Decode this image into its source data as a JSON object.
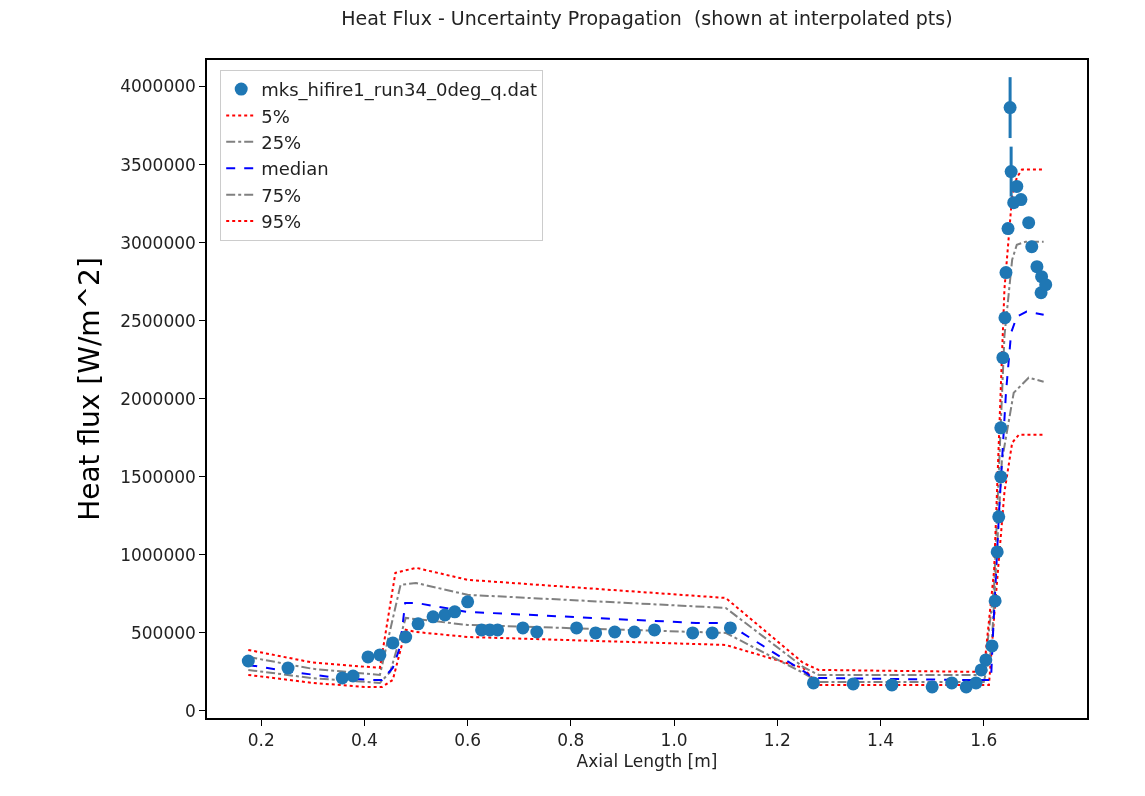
{
  "chart_data": {
    "type": "line",
    "title": "Heat Flux - Uncertainty Propagation  (shown at interpolated pts)",
    "xlabel": "Axial Length [m]",
    "ylabel": "Heat flux [W/m^2]",
    "xlim": [
      0.095,
      1.8
    ],
    "xticks": [
      0.2,
      0.4,
      0.6,
      0.8,
      {
        "value": 1.0,
        "label": "1.0"
      },
      1.2,
      1.4,
      1.6
    ],
    "ylim": [
      -45000,
      4170000
    ],
    "yticks": [
      0,
      500000,
      1000000,
      1500000,
      2000000,
      2500000,
      3000000,
      3500000,
      4000000
    ],
    "grid": false,
    "legend": "top left",
    "series": [
      {
        "name": "mks_hifire1_run34_0deg_q.dat",
        "type": "scatter",
        "marker": "circle",
        "color": "#1f77b4",
        "x": [
          0.175,
          0.252,
          0.357,
          0.378,
          0.407,
          0.43,
          0.455,
          0.48,
          0.504,
          0.533,
          0.556,
          0.575,
          0.6,
          0.627,
          0.643,
          0.658,
          0.707,
          0.734,
          0.811,
          0.848,
          0.885,
          0.923,
          0.962,
          1.036,
          1.074,
          1.109,
          1.27,
          1.347,
          1.422,
          1.5,
          1.538,
          1.566,
          1.585,
          1.595,
          1.604,
          1.616,
          1.622,
          1.626,
          1.629,
          1.633,
          1.633,
          1.637,
          1.641,
          1.643,
          1.647,
          1.651,
          1.653,
          1.658,
          1.664,
          1.672,
          1.687,
          1.693,
          1.703,
          1.711,
          1.712,
          1.72
        ],
        "values": [
          320000,
          275000,
          212000,
          224000,
          346000,
          359000,
          436000,
          474000,
          558000,
          603000,
          615000,
          635000,
          699000,
          519000,
          519000,
          519000,
          532000,
          506000,
          532000,
          500000,
          506000,
          506000,
          519000,
          500000,
          500000,
          532000,
          180000,
          173000,
          167000,
          154000,
          180000,
          154000,
          180000,
          263000,
          327000,
          417000,
          705000,
          1019000,
          1244000,
          1500000,
          1814000,
          2263000,
          2519000,
          2808000,
          3090000,
          3865000,
          3455000,
          3256000,
          3360000,
          3276000,
          3128000,
          2974000,
          2846000,
          2679000,
          2782000,
          2731000
        ],
        "errors": [
          null,
          null,
          null,
          null,
          null,
          null,
          null,
          null,
          null,
          null,
          null,
          null,
          null,
          null,
          null,
          null,
          null,
          null,
          null,
          null,
          null,
          null,
          null,
          null,
          null,
          null,
          null,
          null,
          null,
          null,
          null,
          null,
          null,
          null,
          null,
          null,
          null,
          null,
          null,
          null,
          null,
          null,
          null,
          null,
          null,
          195000,
          160000,
          null,
          null,
          null,
          null,
          null,
          null,
          null,
          null,
          null
        ]
      },
      {
        "name": "5%",
        "color": "#ff0000",
        "line_style": "dotted",
        "x": [
          0.175,
          0.3,
          0.4,
          0.434,
          0.455,
          0.48,
          0.5,
          0.6,
          1.1,
          1.25,
          1.28,
          1.55,
          1.61,
          1.62,
          1.64,
          1.655,
          1.668,
          1.716
        ],
        "values": [
          231000,
          180000,
          154000,
          154000,
          199000,
          520000,
          506000,
          474000,
          423000,
          276000,
          167000,
          167000,
          167000,
          600000,
          1400000,
          1718000,
          1769000,
          1769000
        ]
      },
      {
        "name": "25%",
        "color": "#808080",
        "line_style": "dashdot",
        "x": [
          0.175,
          0.3,
          0.43,
          0.45,
          0.48,
          0.6,
          1.1,
          1.25,
          1.28,
          1.6,
          1.615,
          1.635,
          1.658,
          1.687,
          1.716
        ],
        "values": [
          263000,
          210000,
          180000,
          250000,
          596000,
          551000,
          500000,
          244000,
          186000,
          186000,
          400000,
          1600000,
          2038000,
          2135000,
          2109000
        ]
      },
      {
        "name": "median",
        "color": "#0000ff",
        "line_style": "dashed",
        "x": [
          0.175,
          0.25,
          0.35,
          0.417,
          0.434,
          0.455,
          0.469,
          0.479,
          0.501,
          0.598,
          1.043,
          1.107,
          1.132,
          1.256,
          1.268,
          1.558,
          1.614,
          1.618,
          1.63,
          1.643,
          1.653,
          1.664,
          1.683,
          1.716
        ],
        "values": [
          295000,
          255000,
          210000,
          199000,
          199000,
          276000,
          410000,
          692000,
          692000,
          635000,
          564000,
          564000,
          500000,
          244000,
          212000,
          199000,
          199000,
          500000,
          1300000,
          2038000,
          2423000,
          2526000,
          2558000,
          2538000
        ]
      },
      {
        "name": "75%",
        "color": "#808080",
        "line_style": "dashdot",
        "x": [
          0.175,
          0.3,
          0.43,
          0.47,
          0.5,
          0.6,
          1.1,
          1.25,
          1.28,
          1.6,
          1.62,
          1.64,
          1.655,
          1.664,
          1.681,
          1.716
        ],
        "values": [
          346000,
          270000,
          231000,
          808000,
          820000,
          744000,
          660000,
          282000,
          231000,
          231000,
          800000,
          2400000,
          2891000,
          2987000,
          3006000,
          3006000
        ]
      },
      {
        "name": "95%",
        "color": "#ff0000",
        "line_style": "dotted",
        "x": [
          0.175,
          0.3,
          0.43,
          0.46,
          0.5,
          0.6,
          1.1,
          1.25,
          1.28,
          1.6,
          1.62,
          1.64,
          1.655,
          1.664,
          1.674,
          1.713
        ],
        "values": [
          391000,
          310000,
          276000,
          885000,
          917000,
          840000,
          724000,
          308000,
          263000,
          250000,
          900000,
          2700000,
          3300000,
          3417000,
          3468000,
          3468000
        ]
      }
    ]
  }
}
